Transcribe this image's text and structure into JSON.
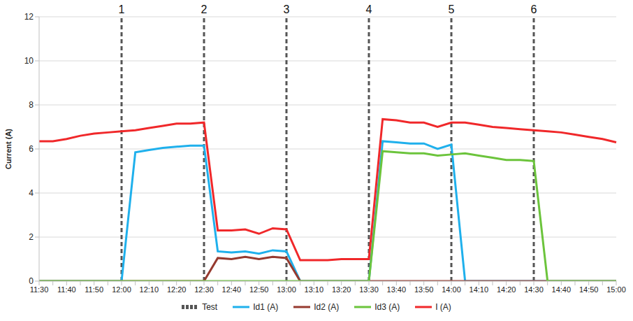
{
  "chart_data": {
    "type": "line",
    "y_label": "Current (A)",
    "categories": [
      "11:30",
      null,
      "11:40",
      null,
      "11:50",
      null,
      "12:00",
      null,
      "12:10",
      null,
      "12:20",
      null,
      "12:30",
      null,
      "12:40",
      null,
      "12:50",
      null,
      "13:00",
      null,
      "13:10",
      null,
      "13:20",
      null,
      "13:30",
      null,
      "13:40",
      null,
      "13:50",
      null,
      "14:00",
      null,
      "14:10",
      null,
      "14:20",
      null,
      "14:30",
      null,
      "14:40",
      null,
      "14:50",
      null,
      "15:00"
    ],
    "series": [
      {
        "name": "Id1 (A)",
        "color": "#1fb0ec",
        "values": [
          0,
          0,
          0,
          0,
          0,
          0,
          0,
          5.85,
          5.95,
          6.05,
          6.1,
          6.15,
          6.15,
          1.35,
          1.3,
          1.35,
          1.25,
          1.4,
          1.35,
          0,
          0,
          0,
          0,
          0,
          0,
          6.35,
          6.3,
          6.25,
          6.25,
          6.0,
          6.2,
          0,
          0,
          0,
          0,
          0,
          0,
          0,
          0,
          0,
          0,
          0,
          0
        ]
      },
      {
        "name": "Id2 (A)",
        "color": "#963a2f",
        "values": [
          0,
          0,
          0,
          0,
          0,
          0,
          0,
          0,
          0,
          0,
          0,
          0,
          0,
          1.05,
          1.0,
          1.1,
          1.0,
          1.1,
          1.05,
          0,
          0,
          0,
          0,
          0,
          0,
          0,
          0,
          0,
          0,
          0,
          0,
          0,
          0,
          0,
          0,
          0,
          0,
          0,
          0,
          0,
          0,
          0,
          0
        ]
      },
      {
        "name": "Id3 (A)",
        "color": "#6cc43c",
        "values": [
          0,
          0,
          0,
          0,
          0,
          0,
          0,
          0,
          0,
          0,
          0,
          0,
          0,
          0,
          0,
          0,
          0,
          0,
          0,
          0,
          0,
          0,
          0,
          0,
          0,
          5.9,
          5.85,
          5.8,
          5.8,
          5.7,
          5.75,
          5.8,
          5.7,
          5.6,
          5.5,
          5.5,
          5.45,
          0,
          0,
          0,
          0,
          0,
          0
        ]
      },
      {
        "name": "I (A)",
        "color": "#f0282a",
        "values": [
          6.35,
          6.35,
          6.45,
          6.6,
          6.7,
          6.75,
          6.8,
          6.85,
          6.95,
          7.05,
          7.15,
          7.15,
          7.2,
          2.3,
          2.3,
          2.35,
          2.15,
          2.4,
          2.35,
          0.95,
          0.95,
          0.95,
          1.0,
          1.0,
          1.0,
          7.35,
          7.3,
          7.2,
          7.2,
          7.0,
          7.2,
          7.2,
          7.1,
          7.0,
          6.95,
          6.9,
          6.85,
          6.8,
          6.75,
          6.65,
          6.55,
          6.45,
          6.3
        ]
      }
    ],
    "test": {
      "name": "Test",
      "color": "#555555",
      "line_style": "dashed",
      "x": [
        "12:00",
        "12:30",
        "13:00",
        "13:30",
        "14:00",
        "14:30"
      ],
      "labels": [
        "1",
        "2",
        "3",
        "4",
        "5",
        "6"
      ]
    },
    "ylim": [
      0,
      12
    ],
    "yticks": [
      0,
      2,
      4,
      6,
      8,
      10,
      12
    ],
    "grid": true,
    "legend": "bottom"
  }
}
